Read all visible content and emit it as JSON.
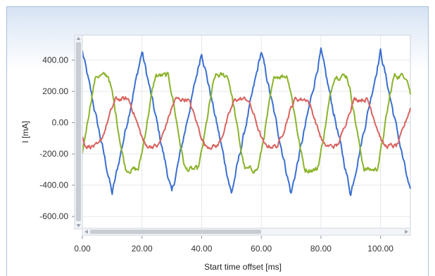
{
  "chart_data": {
    "type": "line",
    "xlabel": "Start time offset [ms]",
    "ylabel": "I [mA]",
    "xlim": [
      0,
      110
    ],
    "ylim": [
      -680,
      560
    ],
    "x_ticks": [
      0,
      20,
      40,
      60,
      80,
      100
    ],
    "x_tick_labels": [
      "0.00",
      "20.00",
      "40.00",
      "60.00",
      "80.00",
      "100.00"
    ],
    "y_ticks": [
      400,
      200,
      0,
      -200,
      -400,
      -600
    ],
    "y_tick_labels": [
      "400.00",
      "200.00",
      "0.00",
      "-200.00",
      "-400.00",
      "-600.00"
    ],
    "grid": true,
    "period_ms": 20,
    "x_step_ms": 0.25,
    "series": [
      {
        "color": "#3a6fd1",
        "wave": {
          "amplitude": 455,
          "phase_deg": 90,
          "shape": "triangular",
          "noise": 35
        }
      },
      {
        "color": "#8bb32a",
        "wave": {
          "amplitude": 300,
          "phase_deg": -30,
          "shape": "flattened",
          "noise": 30
        }
      },
      {
        "color": "#d9635f",
        "wave": {
          "amplitude": 150,
          "phase_deg": 210,
          "shape": "flattened",
          "noise": 25
        }
      }
    ],
    "scrollbars": {
      "vertical_thumb": [
        0.05,
        0.97
      ],
      "horizontal_thumb": [
        0.0,
        0.55
      ]
    }
  }
}
